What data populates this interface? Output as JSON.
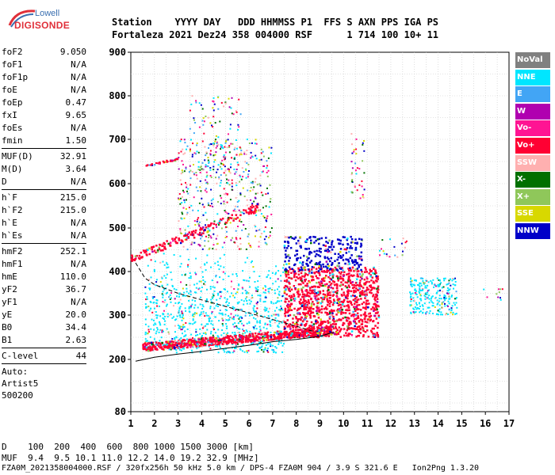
{
  "logo": {
    "line1": "Lowell",
    "line2": "DIGISONDE"
  },
  "header": {
    "labels": {
      "station": "Station",
      "yyyy": "YYYY",
      "day": "DAY",
      "ddd": "DDD",
      "hhmmss": "HHMMSS",
      "p1": "P1",
      "ffs": "FFS",
      "s": "S",
      "axn": "AXN",
      "pps": "PPS",
      "iga": "IGA",
      "ps": "PS"
    },
    "values": {
      "station": "Fortaleza",
      "yyyy": "2021",
      "day": "Dez24",
      "ddd": "358",
      "hhmmss": "004000",
      "p1": "RSF",
      "ffs": "",
      "s": "1",
      "axn": "714",
      "pps": "100",
      "iga": "10+",
      "ps": "11"
    }
  },
  "params": {
    "g1": [
      {
        "k": "foF2",
        "v": "9.050"
      },
      {
        "k": "foF1",
        "v": "N/A"
      },
      {
        "k": "foF1p",
        "v": "N/A"
      },
      {
        "k": "foE",
        "v": "N/A"
      },
      {
        "k": "foEp",
        "v": "0.47"
      },
      {
        "k": "fxI",
        "v": "9.65"
      },
      {
        "k": "foEs",
        "v": "N/A"
      },
      {
        "k": "fmin",
        "v": "1.50"
      }
    ],
    "g2": [
      {
        "k": "MUF(D)",
        "v": "32.91"
      },
      {
        "k": "M(D)",
        "v": "3.64"
      },
      {
        "k": "D",
        "v": "N/A"
      }
    ],
    "g3": [
      {
        "k": "h`F",
        "v": "215.0"
      },
      {
        "k": "h`F2",
        "v": "215.0"
      },
      {
        "k": "h`E",
        "v": "N/A"
      },
      {
        "k": "h`Es",
        "v": "N/A"
      }
    ],
    "g4": [
      {
        "k": "hmF2",
        "v": "252.1"
      },
      {
        "k": "hmF1",
        "v": "N/A"
      },
      {
        "k": "hmE",
        "v": "110.0"
      },
      {
        "k": "yF2",
        "v": "36.7"
      },
      {
        "k": "yF1",
        "v": "N/A"
      },
      {
        "k": "yE",
        "v": "20.0"
      },
      {
        "k": "B0",
        "v": "34.4"
      },
      {
        "k": "B1",
        "v": "2.63"
      }
    ],
    "g5": [
      {
        "k": "C-level",
        "v": "44"
      }
    ],
    "auto": [
      "Auto:",
      "Artist5",
      "500200"
    ]
  },
  "bottom": {
    "d_label": "D",
    "d_values": [
      "100",
      "200",
      "400",
      "600",
      "800",
      "1000",
      "1500",
      "3000",
      "[km]"
    ],
    "muf_label": "MUF",
    "muf_values": [
      "9.4",
      "9.5",
      "10.1",
      "11.0",
      "12.2",
      "14.0",
      "19.2",
      "32.9",
      "[MHz]"
    ],
    "footer": "FZA0M_2021358004000.RSF / 320fx256h 50 kHz 5.0 km / DPS-4 FZA0M 904 / 3.9 S 321.6 E   Ion2Png 1.3.20"
  },
  "legend": [
    {
      "label": "NoVal",
      "color": "#808080"
    },
    {
      "label": "NNE",
      "color": "#00e6ff"
    },
    {
      "label": "E",
      "color": "#42a5f5"
    },
    {
      "label": "W",
      "color": "#b000b0"
    },
    {
      "label": "Vo-",
      "color": "#ff1493"
    },
    {
      "label": "Vo+",
      "color": "#ff0033"
    },
    {
      "label": "SSW",
      "color": "#ffb0b0"
    },
    {
      "label": "X-",
      "color": "#007000"
    },
    {
      "label": "X+",
      "color": "#8fc75a"
    },
    {
      "label": "SSE",
      "color": "#d8d800"
    },
    {
      "label": "NNW",
      "color": "#0000c8"
    }
  ],
  "chart_data": {
    "type": "scatter",
    "title": "",
    "xlabel": "",
    "ylabel": "",
    "xlim": [
      1,
      17
    ],
    "ylim": [
      80,
      900
    ],
    "x_ticks": [
      1,
      2,
      3,
      4,
      5,
      6,
      7,
      8,
      9,
      10,
      11,
      12,
      13,
      14,
      15,
      16,
      17
    ],
    "y_ticks": [
      80,
      200,
      300,
      400,
      500,
      600,
      700,
      800,
      900
    ],
    "grid": true,
    "traces": [
      {
        "name": "O-trace F2",
        "direction": "Vo+",
        "x_range": [
          1.5,
          9.5
        ],
        "h_range": [
          215,
          260
        ]
      },
      {
        "name": "F2 spread",
        "direction": "NNE",
        "x_range": [
          1.6,
          7.5
        ],
        "h_range": [
          215,
          450
        ]
      },
      {
        "name": "2F multihop",
        "direction": "Vo+",
        "x_range": [
          1.0,
          6.5
        ],
        "h_range": [
          425,
          560
        ]
      },
      {
        "name": "3F multihop",
        "direction": "Vo+",
        "x_range": [
          1.6,
          3.0
        ],
        "h_range": [
          640,
          660
        ]
      },
      {
        "name": "F spread mixed",
        "direction": "Vo+",
        "x_range": [
          7.5,
          11.5
        ],
        "h_range": [
          250,
          400
        ]
      },
      {
        "name": "NNW cluster",
        "direction": "NNW",
        "x_range": [
          7.5,
          10.8
        ],
        "h_range": [
          400,
          480
        ]
      },
      {
        "name": "X-trace satellite",
        "direction": "NNE",
        "x_range": [
          12.8,
          14.8
        ],
        "h_range": [
          300,
          380
        ]
      }
    ],
    "profile_lower": [
      [
        1.2,
        196
      ],
      [
        2,
        205
      ],
      [
        3,
        212
      ],
      [
        4,
        218
      ],
      [
        5,
        225
      ],
      [
        6,
        232
      ],
      [
        7,
        240
      ],
      [
        8,
        245
      ],
      [
        9,
        252
      ],
      [
        9.6,
        262
      ]
    ],
    "profile_upper": [
      [
        1.2,
        420
      ],
      [
        1.6,
        385
      ],
      [
        2,
        370
      ],
      [
        3,
        350
      ],
      [
        4,
        335
      ],
      [
        5,
        320
      ],
      [
        6,
        305
      ],
      [
        7,
        290
      ],
      [
        8,
        275
      ],
      [
        8.8,
        262
      ]
    ]
  }
}
